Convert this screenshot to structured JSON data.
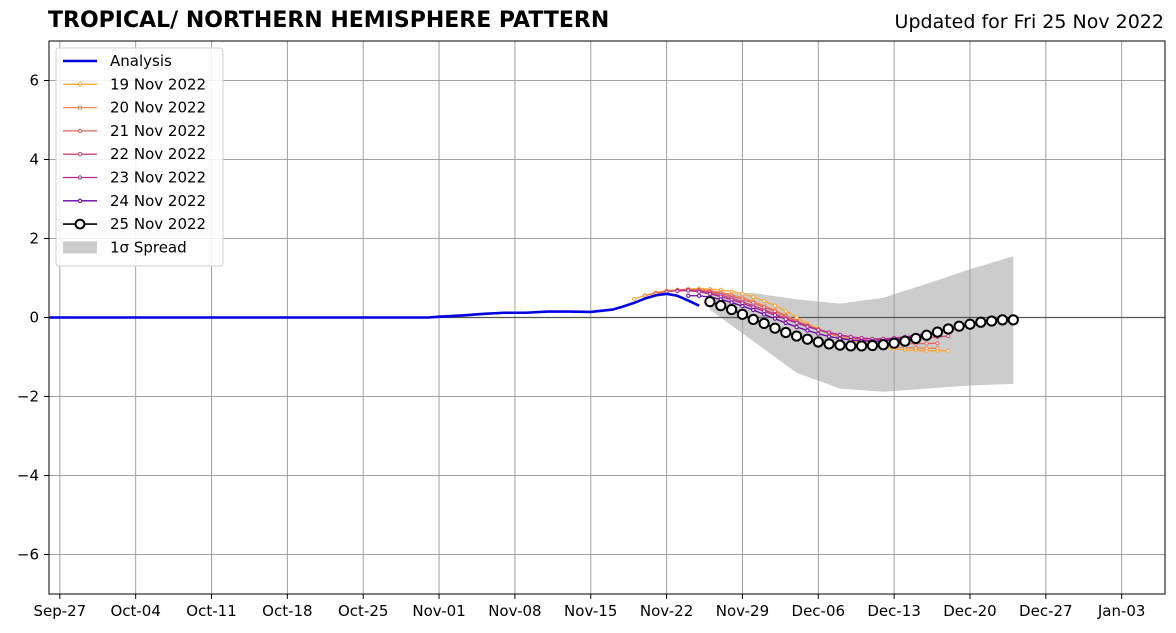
{
  "header": {
    "title": "TROPICAL/ NORTHERN HEMISPHERE PATTERN",
    "updated": "Updated for Fri 25 Nov 2022"
  },
  "chart_data": {
    "type": "line",
    "title": "TROPICAL/ NORTHERN HEMISPHERE PATTERN",
    "subtitle": "Updated for Fri 25 Nov 2022",
    "xlabel": "",
    "ylabel": "",
    "xlim": [
      "2022-09-26",
      "2023-01-07"
    ],
    "ylim": [
      -7,
      7
    ],
    "grid": true,
    "legend_position": "top-left",
    "x_ticks": [
      "Sep-27",
      "Oct-04",
      "Oct-11",
      "Oct-18",
      "Oct-25",
      "Nov-01",
      "Nov-08",
      "Nov-15",
      "Nov-22",
      "Nov-29",
      "Dec-06",
      "Dec-13",
      "Dec-20",
      "Dec-27",
      "Jan-03"
    ],
    "x_tick_dates": [
      "2022-09-27",
      "2022-10-04",
      "2022-10-11",
      "2022-10-18",
      "2022-10-25",
      "2022-11-01",
      "2022-11-08",
      "2022-11-15",
      "2022-11-22",
      "2022-11-29",
      "2022-12-06",
      "2022-12-13",
      "2022-12-20",
      "2022-12-27",
      "2023-01-03"
    ],
    "y_ticks": [
      6,
      4,
      2,
      0,
      -2,
      -4,
      -6
    ],
    "y_tick_labels": [
      "6",
      "4",
      "2",
      "0",
      "−2",
      "−4",
      "−6"
    ],
    "legend": [
      "Analysis",
      "19 Nov 2022",
      "20 Nov 2022",
      "21 Nov 2022",
      "22 Nov 2022",
      "23 Nov 2022",
      "24 Nov 2022",
      "25 Nov 2022",
      "1σ Spread"
    ],
    "analysis": {
      "name": "Analysis",
      "color": "#0000e0",
      "points": [
        [
          "2022-09-26",
          0
        ],
        [
          "2022-10-31",
          0
        ],
        [
          "2022-11-01",
          0.02
        ],
        [
          "2022-11-03",
          0.05
        ],
        [
          "2022-11-05",
          0.09
        ],
        [
          "2022-11-07",
          0.12
        ],
        [
          "2022-11-09",
          0.12
        ],
        [
          "2022-11-11",
          0.15
        ],
        [
          "2022-11-13",
          0.15
        ],
        [
          "2022-11-15",
          0.14
        ],
        [
          "2022-11-17",
          0.2
        ],
        [
          "2022-11-18",
          0.28
        ],
        [
          "2022-11-19",
          0.37
        ],
        [
          "2022-11-20",
          0.48
        ],
        [
          "2022-11-21",
          0.56
        ],
        [
          "2022-11-22",
          0.6
        ],
        [
          "2022-11-23",
          0.55
        ],
        [
          "2022-11-24",
          0.43
        ],
        [
          "2022-11-25",
          0.3
        ]
      ]
    },
    "forecasts": [
      {
        "name": "19 Nov 2022",
        "color": "#fca636",
        "start": "2022-11-19",
        "values": [
          0.47,
          0.56,
          0.63,
          0.68,
          0.7,
          0.72,
          0.73,
          0.72,
          0.7,
          0.66,
          0.6,
          0.52,
          0.42,
          0.3,
          0.16,
          0.0,
          -0.15,
          -0.28,
          -0.4,
          -0.5,
          -0.58,
          -0.64,
          -0.7,
          -0.75,
          -0.79,
          -0.82,
          -0.83,
          -0.84,
          -0.84,
          -0.84
        ]
      },
      {
        "name": "20 Nov 2022",
        "color": "#f1844b",
        "start": "2022-11-20",
        "values": [
          0.55,
          0.62,
          0.67,
          0.7,
          0.71,
          0.7,
          0.68,
          0.64,
          0.58,
          0.5,
          0.41,
          0.3,
          0.18,
          0.05,
          -0.08,
          -0.2,
          -0.31,
          -0.41,
          -0.49,
          -0.56,
          -0.62,
          -0.67,
          -0.71,
          -0.74,
          -0.76,
          -0.77,
          -0.78,
          -0.78
        ]
      },
      {
        "name": "21 Nov 2022",
        "color": "#e16462",
        "start": "2022-11-21",
        "values": [
          0.6,
          0.66,
          0.69,
          0.7,
          0.69,
          0.66,
          0.61,
          0.54,
          0.46,
          0.37,
          0.26,
          0.15,
          0.03,
          -0.09,
          -0.2,
          -0.3,
          -0.38,
          -0.45,
          -0.51,
          -0.56,
          -0.6,
          -0.63,
          -0.65,
          -0.66,
          -0.66,
          -0.66,
          -0.65
        ]
      },
      {
        "name": "22 Nov 2022",
        "color": "#cc4778",
        "start": "2022-11-22",
        "values": [
          0.65,
          0.68,
          0.69,
          0.67,
          0.63,
          0.57,
          0.49,
          0.4,
          0.3,
          0.2,
          0.09,
          -0.02,
          -0.12,
          -0.22,
          -0.31,
          -0.38,
          -0.44,
          -0.49,
          -0.53,
          -0.55,
          -0.56,
          -0.56,
          -0.55,
          -0.53,
          -0.51,
          -0.49,
          -0.47
        ]
      },
      {
        "name": "23 Nov 2022",
        "color": "#b12a90",
        "start": "2022-11-23",
        "values": [
          0.67,
          0.68,
          0.65,
          0.6,
          0.53,
          0.45,
          0.36,
          0.26,
          0.16,
          0.06,
          -0.04,
          -0.14,
          -0.23,
          -0.31,
          -0.38,
          -0.44,
          -0.49,
          -0.52,
          -0.54,
          -0.54,
          -0.52,
          -0.49,
          -0.45,
          -0.4,
          -0.36,
          -0.31,
          -0.27
        ]
      },
      {
        "name": "24 Nov 2022",
        "color": "#6a00a8",
        "start": "2022-11-24",
        "values": [
          0.55,
          0.55,
          0.52,
          0.46,
          0.38,
          0.29,
          0.19,
          0.08,
          -0.03,
          -0.14,
          -0.24,
          -0.33,
          -0.41,
          -0.48,
          -0.53,
          -0.57,
          -0.59,
          -0.6,
          -0.59,
          -0.56,
          -0.52,
          -0.47,
          -0.42,
          -0.36,
          -0.3,
          -0.25,
          -0.2
        ]
      },
      {
        "name": "25 Nov 2022",
        "color": "#000000",
        "start": "2022-11-26",
        "values": [
          0.4,
          0.3,
          0.2,
          0.08,
          -0.05,
          -0.15,
          -0.27,
          -0.38,
          -0.47,
          -0.55,
          -0.62,
          -0.67,
          -0.7,
          -0.72,
          -0.72,
          -0.71,
          -0.69,
          -0.65,
          -0.6,
          -0.53,
          -0.45,
          -0.37,
          -0.29,
          -0.22,
          -0.17,
          -0.12,
          -0.09,
          -0.06,
          -0.06
        ]
      }
    ],
    "spread": {
      "name": "1σ Spread",
      "color": "#cccccc",
      "x": [
        "2022-11-26",
        "2022-11-30",
        "2022-12-04",
        "2022-12-08",
        "2022-12-12",
        "2022-12-16",
        "2022-12-20",
        "2022-12-24"
      ],
      "upper": [
        0.6,
        0.62,
        0.46,
        0.35,
        0.5,
        0.85,
        1.22,
        1.55
      ],
      "lower": [
        0.2,
        -0.6,
        -1.4,
        -1.8,
        -1.88,
        -1.8,
        -1.72,
        -1.68
      ]
    }
  }
}
